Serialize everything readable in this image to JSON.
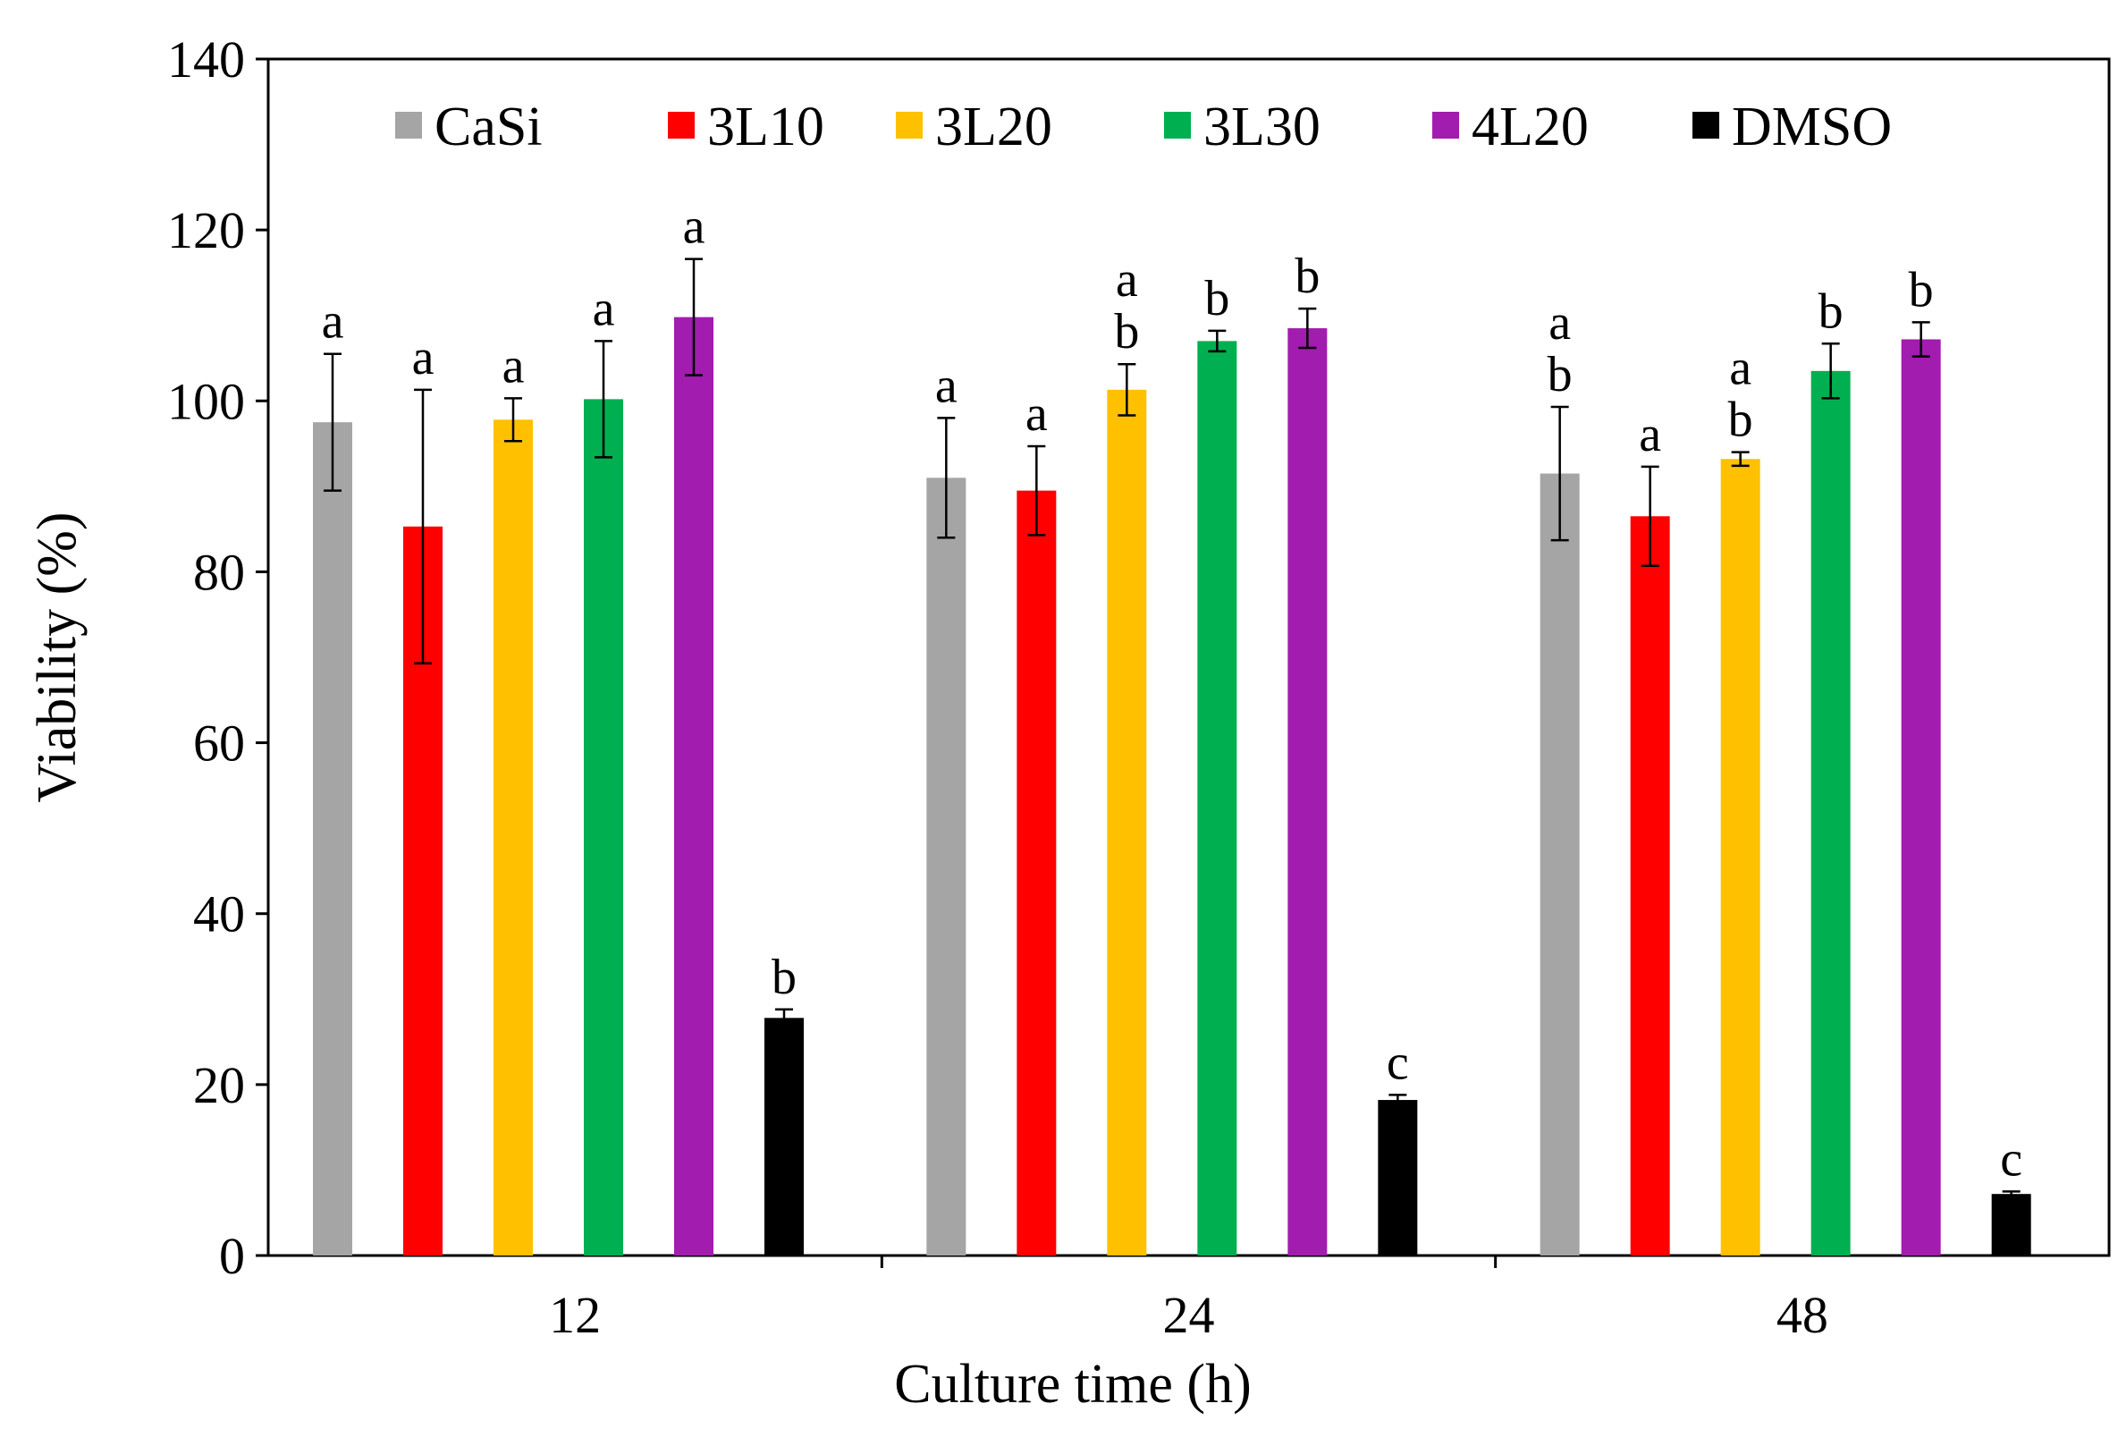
{
  "chart_data": {
    "type": "bar",
    "title": "",
    "xlabel": "Culture time (h)",
    "ylabel": "Viability (%)",
    "ylim": [
      0,
      140
    ],
    "yticks": [
      "0",
      "20",
      "40",
      "60",
      "80",
      "100",
      "120",
      "140"
    ],
    "categories": [
      "12",
      "24",
      "48"
    ],
    "legend_position": "top",
    "grid": false,
    "error_bars": true,
    "series": [
      {
        "name": "CaSi",
        "color": "#a5a5a5",
        "values": [
          97.5,
          91,
          91.5
        ],
        "errors": [
          8,
          7,
          7.8
        ],
        "sig": [
          [
            "a"
          ],
          [
            "a"
          ],
          [
            "a",
            "b"
          ]
        ]
      },
      {
        "name": "3L10",
        "color": "#ff0000",
        "values": [
          85.3,
          89.5,
          86.5
        ],
        "errors": [
          16,
          5.2,
          5.8
        ],
        "sig": [
          [
            "a"
          ],
          [
            "a"
          ],
          [
            "a"
          ]
        ]
      },
      {
        "name": "3L20",
        "color": "#ffc000",
        "values": [
          97.8,
          101.3,
          93.2
        ],
        "errors": [
          2.5,
          3,
          0.8
        ],
        "sig": [
          [
            "a"
          ],
          [
            "a",
            "b"
          ],
          [
            "a",
            "b"
          ]
        ]
      },
      {
        "name": "3L30",
        "color": "#00b050",
        "values": [
          100.2,
          107,
          103.5
        ],
        "errors": [
          6.8,
          1.2,
          3.2
        ],
        "sig": [
          [
            "a"
          ],
          [
            "b"
          ],
          [
            "b"
          ]
        ]
      },
      {
        "name": "4L20",
        "color": "#a21caf",
        "values": [
          109.8,
          108.5,
          107.2
        ],
        "errors": [
          6.8,
          2.3,
          2
        ],
        "sig": [
          [
            "a"
          ],
          [
            "b"
          ],
          [
            "b"
          ]
        ]
      },
      {
        "name": "DMSO",
        "color": "#000000",
        "values": [
          27.8,
          18.2,
          7.2
        ],
        "errors": [
          1,
          0.6,
          0.3
        ],
        "sig": [
          [
            "b"
          ],
          [
            "c"
          ],
          [
            "c"
          ]
        ]
      }
    ]
  }
}
